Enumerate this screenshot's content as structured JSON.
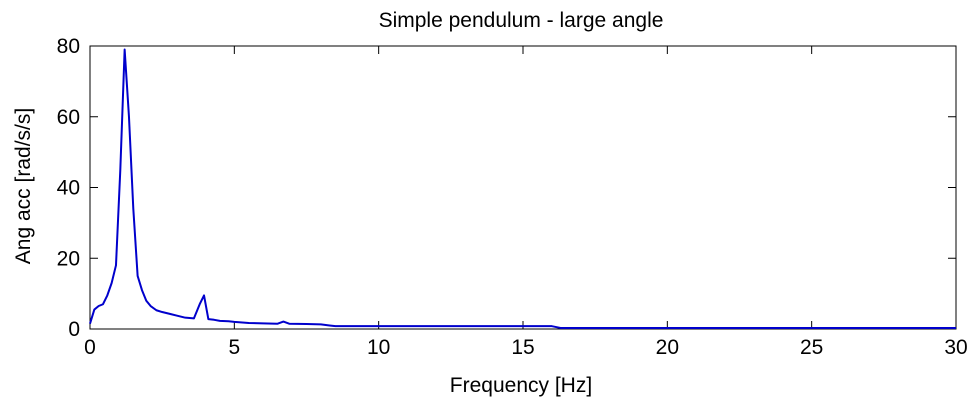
{
  "chart_data": {
    "type": "line",
    "title": "Simple pendulum - large angle",
    "xlabel": "Frequency [Hz]",
    "ylabel": "Ang acc [rad/s/s]",
    "xlim": [
      0,
      30
    ],
    "ylim": [
      0,
      80
    ],
    "x_ticks": [
      "0",
      "5",
      "10",
      "15",
      "20",
      "25",
      "30"
    ],
    "y_ticks": [
      "0",
      "20",
      "40",
      "60",
      "80"
    ],
    "grid": false,
    "line_color": "#0000cc",
    "series": [
      {
        "x": [
          0,
          0.15,
          0.3,
          0.45,
          0.6,
          0.75,
          0.9,
          1.05,
          1.2,
          1.35,
          1.5,
          1.65,
          1.8,
          1.95,
          2.1,
          2.3,
          2.5,
          2.8,
          3.0,
          3.3,
          3.6,
          3.8,
          3.95,
          4.1,
          4.3,
          4.5,
          4.8,
          5.0,
          5.5,
          6.0,
          6.5,
          6.7,
          6.9,
          7.5,
          8.0,
          8.3,
          8.5,
          9.0,
          10.0,
          12.0,
          14.0,
          15.0,
          16.0,
          16.3,
          17.0,
          20.0,
          25.0,
          30.0
        ],
        "values": [
          1.5,
          5.5,
          6.5,
          7.0,
          9.5,
          13.0,
          18.0,
          45.0,
          79.0,
          60.0,
          34.0,
          15.0,
          11.0,
          8.0,
          6.5,
          5.3,
          4.8,
          4.2,
          3.8,
          3.2,
          3.0,
          7.0,
          9.5,
          2.8,
          2.6,
          2.3,
          2.2,
          2.0,
          1.7,
          1.6,
          1.5,
          2.1,
          1.5,
          1.4,
          1.3,
          1.0,
          0.8,
          0.8,
          0.8,
          0.8,
          0.8,
          0.8,
          0.8,
          0.3,
          0.3,
          0.3,
          0.3,
          0.3
        ]
      }
    ]
  }
}
